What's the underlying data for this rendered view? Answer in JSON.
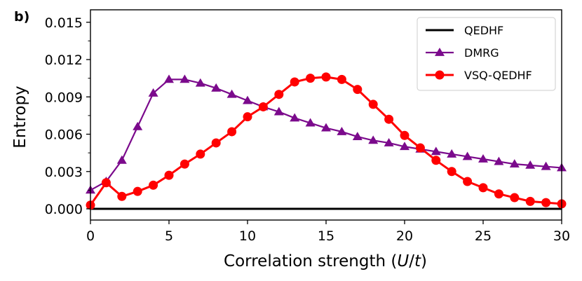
{
  "chart_data": {
    "type": "line",
    "panel_label": "b)",
    "xlabel": "Correlation strength (U/t)",
    "xlabel_parts": {
      "prefix": "Correlation strength (",
      "u": "U",
      "slash": "/",
      "t": "t",
      "suffix": ")"
    },
    "ylabel": "Entropy",
    "xlim": [
      0,
      30
    ],
    "ylim": [
      -0.0009,
      0.016
    ],
    "x_ticks": [
      0,
      5,
      10,
      15,
      20,
      25,
      30
    ],
    "x_tick_labels": [
      "0",
      "5",
      "10",
      "15",
      "20",
      "25",
      "30"
    ],
    "y_ticks": [
      0.0,
      0.003,
      0.006,
      0.009,
      0.012,
      0.015
    ],
    "y_tick_labels": [
      "0.000",
      "0.003",
      "0.006",
      "0.009",
      "0.012",
      "0.015"
    ],
    "legend_position": "top-right",
    "series": [
      {
        "name": "QEDHF",
        "color": "#000000",
        "marker": "none",
        "x": [
          0,
          30
        ],
        "y": [
          0.0,
          0.0
        ]
      },
      {
        "name": "DMRG",
        "color": "#7b0a8c",
        "marker": "triangle",
        "x": [
          0,
          1,
          2,
          3,
          4,
          5,
          6,
          7,
          8,
          9,
          10,
          11,
          12,
          13,
          14,
          15,
          16,
          17,
          18,
          19,
          20,
          21,
          22,
          23,
          24,
          25,
          26,
          27,
          28,
          29,
          30
        ],
        "y": [
          0.0015,
          0.0022,
          0.0039,
          0.0066,
          0.0093,
          0.0104,
          0.0104,
          0.0101,
          0.0097,
          0.0092,
          0.0087,
          0.0082,
          0.0078,
          0.0073,
          0.0069,
          0.0065,
          0.0062,
          0.0058,
          0.0055,
          0.0053,
          0.005,
          0.0048,
          0.0046,
          0.0044,
          0.0042,
          0.004,
          0.0038,
          0.0036,
          0.0035,
          0.0034,
          0.0033
        ]
      },
      {
        "name": "VSQ-QEDHF",
        "color": "#ff0000",
        "marker": "circle",
        "x": [
          0,
          1,
          2,
          3,
          4,
          5,
          6,
          7,
          8,
          9,
          10,
          11,
          12,
          13,
          14,
          15,
          16,
          17,
          18,
          19,
          20,
          21,
          22,
          23,
          24,
          25,
          26,
          27,
          28,
          29,
          30
        ],
        "y": [
          0.0003,
          0.0021,
          0.001,
          0.0014,
          0.0019,
          0.0027,
          0.0036,
          0.0044,
          0.0053,
          0.0062,
          0.0074,
          0.0082,
          0.0092,
          0.0102,
          0.0105,
          0.0106,
          0.0104,
          0.0096,
          0.0084,
          0.0072,
          0.0059,
          0.0049,
          0.0039,
          0.003,
          0.0022,
          0.0017,
          0.0012,
          0.0009,
          0.0006,
          0.0005,
          0.0004
        ]
      }
    ]
  }
}
